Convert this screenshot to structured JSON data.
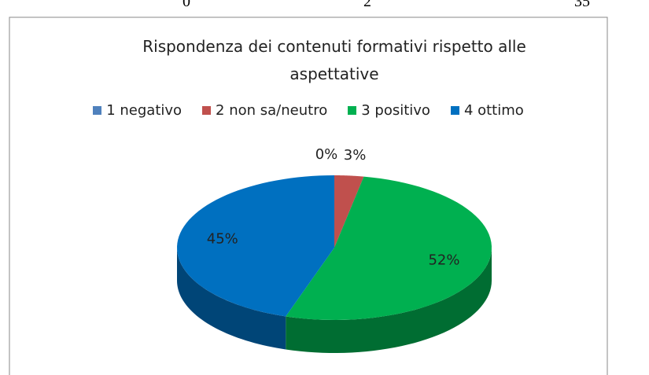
{
  "clipped_row": [
    "0",
    "2",
    "35"
  ],
  "chart_data": {
    "type": "pie",
    "title": "Rispondenza dei contenuti formativi rispetto alle aspettative",
    "categories": [
      "1 negativo",
      "2 non sa/neutro",
      "3 positivo",
      "4 ottimo"
    ],
    "values": [
      0,
      3,
      52,
      45
    ],
    "value_labels": [
      "0%",
      "3%",
      "52%",
      "45%"
    ],
    "colors": [
      "#4f81bd",
      "#c0504d",
      "#00b050",
      "#0070c0"
    ],
    "legend": "top"
  }
}
